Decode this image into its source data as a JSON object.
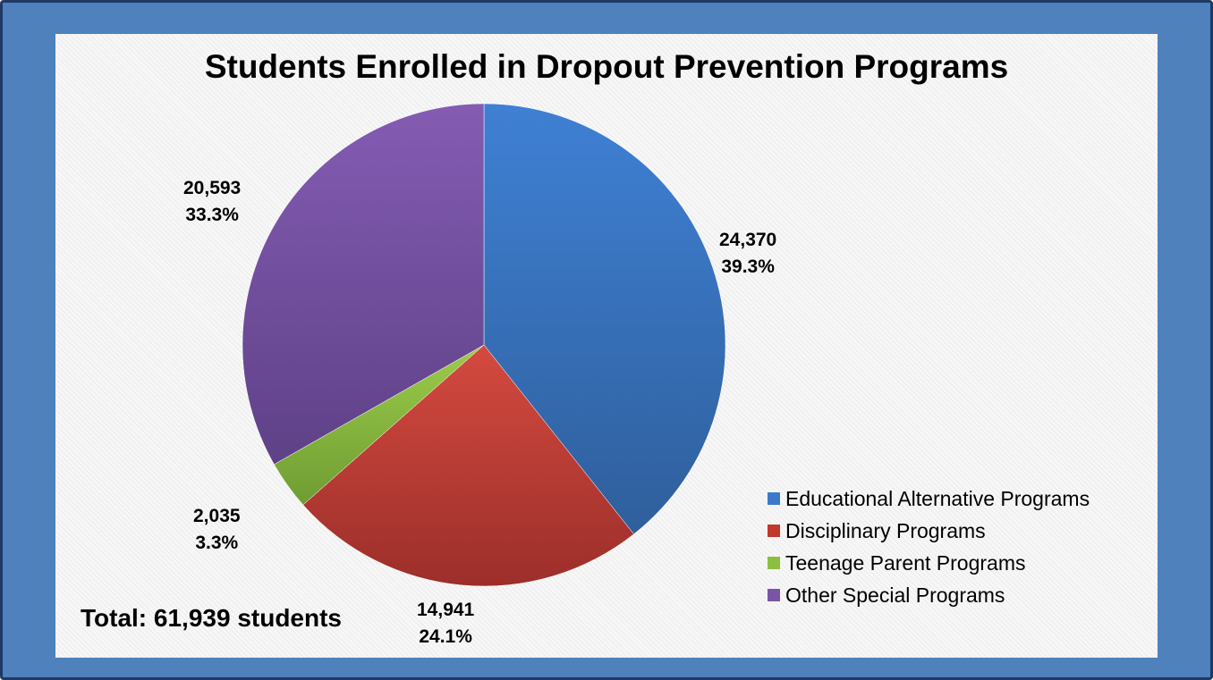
{
  "chart_data": {
    "type": "pie",
    "title": "Students Enrolled in Dropout Prevention Programs",
    "categories": [
      "Educational Alternative Programs",
      "Disciplinary Programs",
      "Teenage Parent Programs",
      "Other Special Programs"
    ],
    "values": [
      24370,
      14941,
      2035,
      20593
    ],
    "value_labels": [
      "24,370",
      "14,941",
      "2,035",
      "20,593"
    ],
    "percent_labels": [
      "39.3%",
      "24.1%",
      "3.3%",
      "33.3%"
    ],
    "colors": [
      "#3c7ac9",
      "#c0392b",
      "#8cbf3f",
      "#7a55a3"
    ],
    "legend_position": "bottom-right",
    "annotation": "Total: 61,939 students"
  }
}
